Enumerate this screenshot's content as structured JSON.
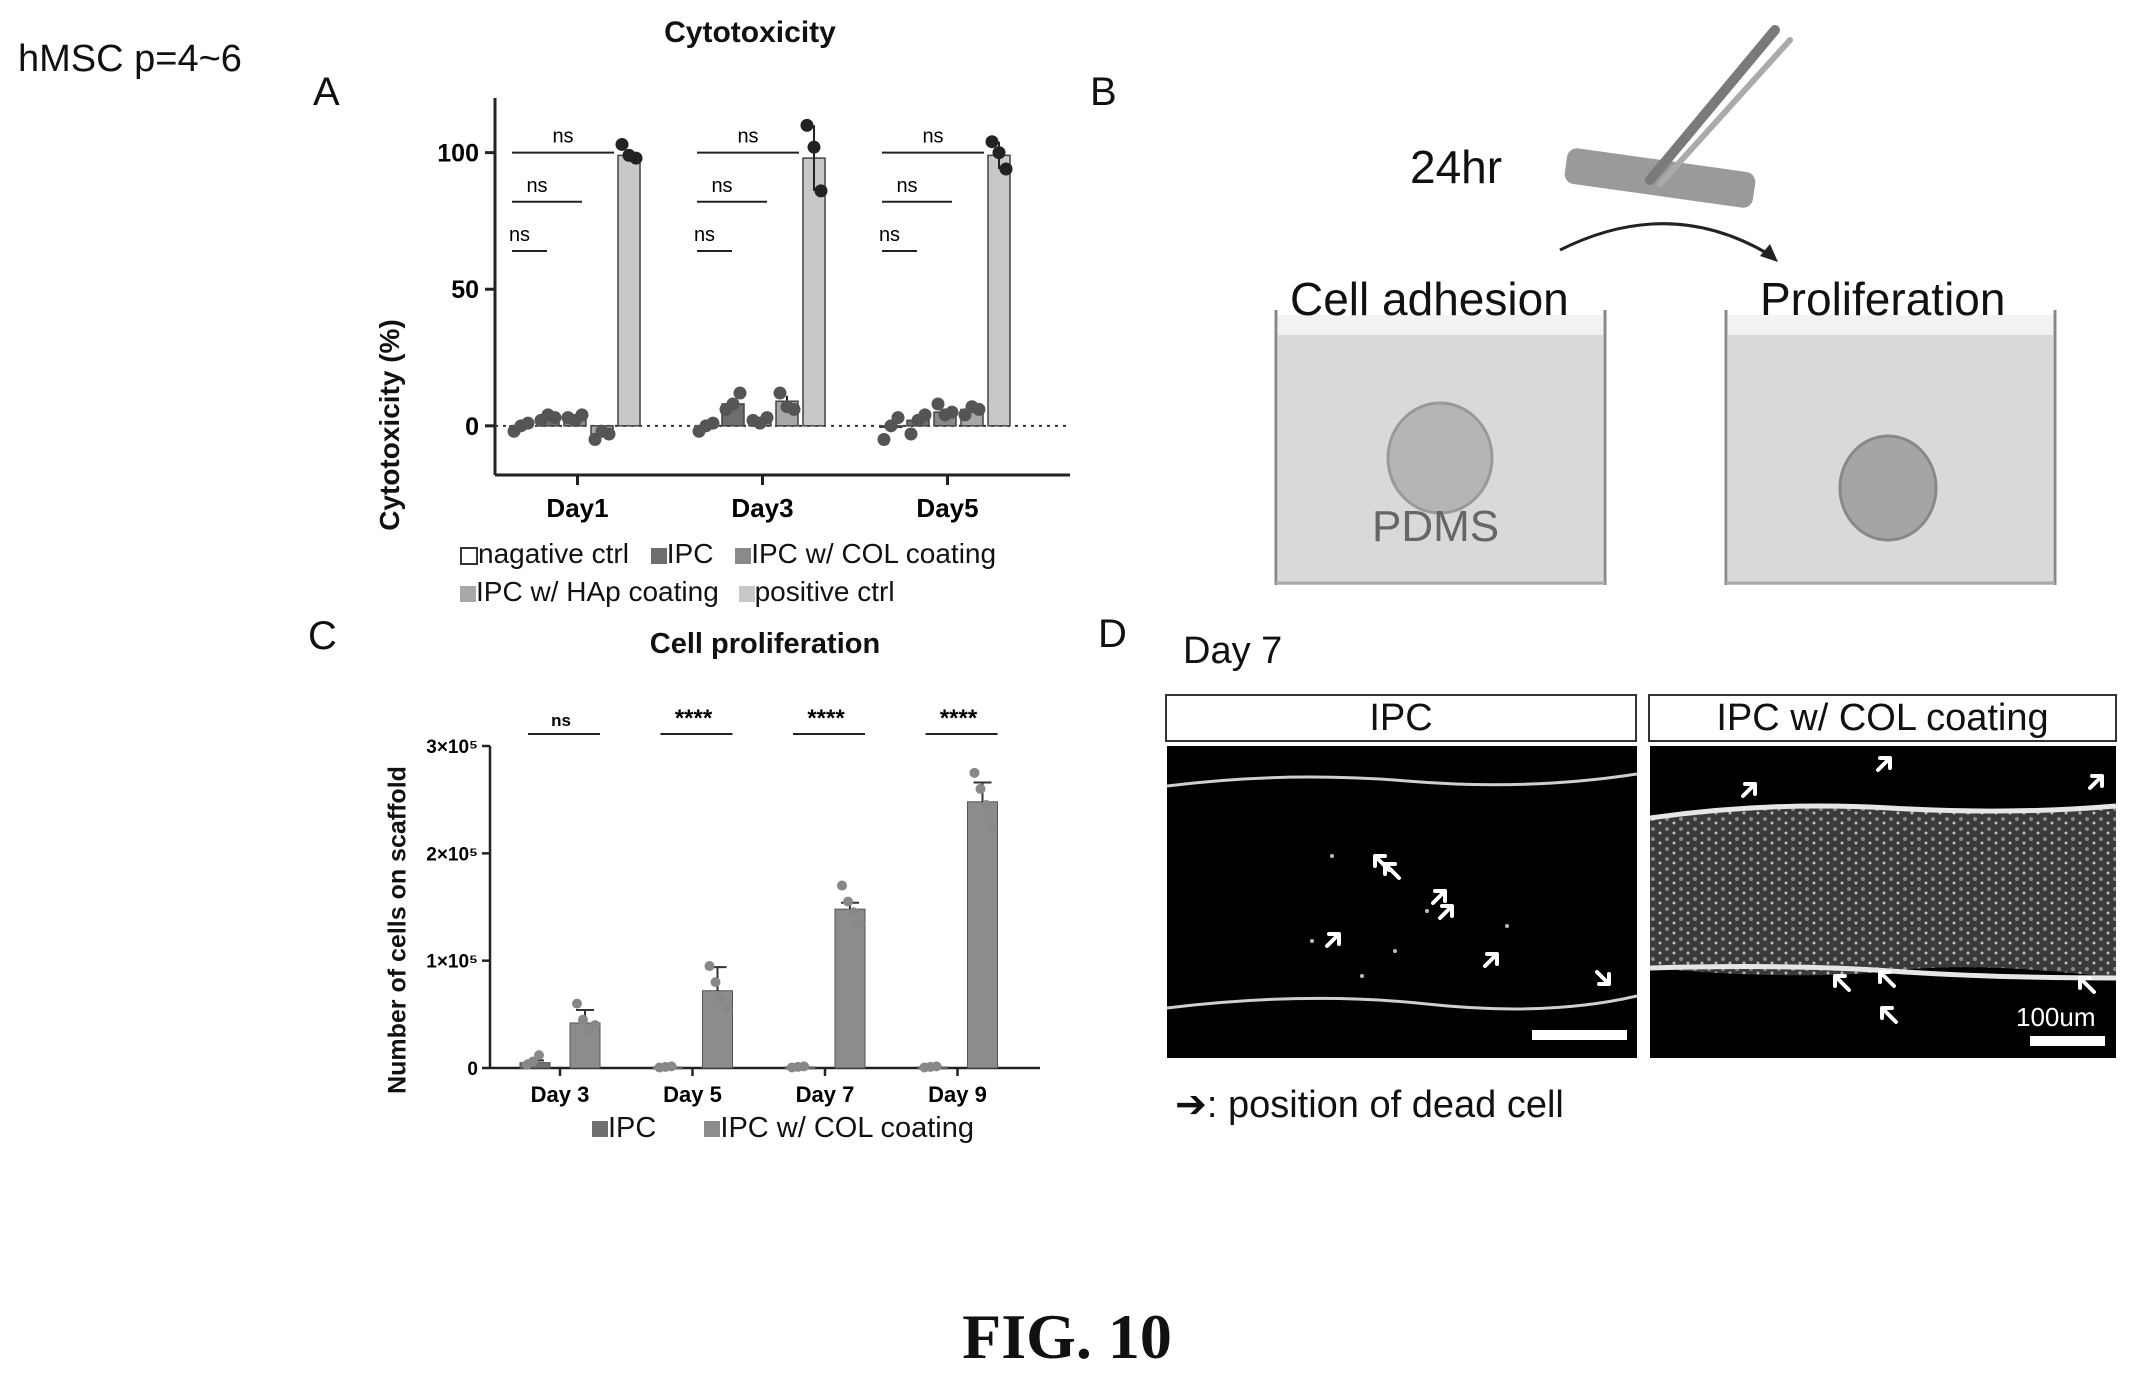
{
  "top_label": "hMSC p=4~6",
  "figure_caption": "FIG. 10",
  "panels": {
    "A": "A",
    "B": "B",
    "C": "C",
    "D": "D"
  },
  "panel_b": {
    "time_label": "24hr",
    "left_well_label": "Cell adhesion",
    "right_well_label": "Proliferation",
    "material_label": "PDMS"
  },
  "panel_d": {
    "day_label": "Day 7",
    "left_label": "IPC",
    "right_label": "IPC w/ COL coating",
    "scale_label": "100um",
    "note": "➔: position of dead cell"
  },
  "chart_data": [
    {
      "type": "bar",
      "title": "Cytotoxicity",
      "ylabel": "Cytotoxicity (%)",
      "xlabel": "",
      "categories": [
        "Day1",
        "Day3",
        "Day5"
      ],
      "ylim": [
        -18,
        120
      ],
      "yticks": [
        0,
        50,
        100
      ],
      "ytick_labels": [
        "0",
        "50",
        "100"
      ],
      "zero_line": "dotted",
      "grid": false,
      "legend_position": "bottom",
      "series": [
        {
          "name": "nagative ctrl",
          "color": "#ffffff",
          "values": [
            0,
            0,
            0
          ],
          "points": [
            [
              -2,
              0,
              1
            ],
            [
              -2,
              0,
              1
            ],
            [
              -5,
              0,
              3
            ]
          ]
        },
        {
          "name": "IPC",
          "color": "#6e6e6e",
          "values": [
            3,
            8,
            2
          ],
          "points": [
            [
              2,
              4,
              3
            ],
            [
              6,
              8,
              12
            ],
            [
              -3,
              2,
              4
            ]
          ]
        },
        {
          "name": "IPC w/ COL coating",
          "color": "#8a8a8a",
          "values": [
            2,
            2,
            5
          ],
          "points": [
            [
              3,
              2,
              4
            ],
            [
              2,
              1,
              3
            ],
            [
              8,
              4,
              5
            ]
          ]
        },
        {
          "name": "IPC w/ HAp coating",
          "color": "#a8a8a8",
          "values": [
            -3,
            9,
            6
          ],
          "points": [
            [
              -5,
              -2,
              -3
            ],
            [
              12,
              7,
              6
            ],
            [
              4,
              7,
              6
            ]
          ]
        },
        {
          "name": "positive ctrl",
          "color": "#c8c8c8",
          "values": [
            99,
            98,
            99
          ],
          "points": [
            [
              103,
              99,
              98
            ],
            [
              110,
              102,
              86
            ],
            [
              104,
              100,
              94
            ]
          ]
        }
      ],
      "error": [
        [
          1,
          1,
          1
        ],
        [
          1,
          2,
          1
        ],
        [
          1,
          1,
          1
        ],
        [
          1,
          2,
          1
        ],
        [
          2,
          12,
          5
        ]
      ],
      "significance": [
        {
          "group": "Day1",
          "labels": [
            "ns",
            "ns",
            "ns"
          ]
        },
        {
          "group": "Day3",
          "labels": [
            "ns",
            "ns",
            "ns"
          ]
        },
        {
          "group": "Day5",
          "labels": [
            "ns",
            "ns",
            "ns"
          ]
        }
      ]
    },
    {
      "type": "bar",
      "title": "Cell proliferation",
      "ylabel": "Number of cells on scaffold",
      "xlabel": "",
      "categories": [
        "Day 3",
        "Day 5",
        "Day 7",
        "Day 9"
      ],
      "ylim": [
        0,
        300000
      ],
      "yticks": [
        0,
        100000,
        200000,
        300000
      ],
      "ytick_labels": [
        "0",
        "1×10⁵",
        "2×10⁵",
        "3×10⁵"
      ],
      "grid": false,
      "legend_position": "bottom",
      "series": [
        {
          "name": "IPC",
          "color": "#707070",
          "values": [
            5000,
            1000,
            1000,
            1000
          ],
          "points": [
            [
              3000,
              6000,
              12000
            ],
            [
              500,
              1000,
              1500
            ],
            [
              500,
              1000,
              1500
            ],
            [
              500,
              1000,
              1500
            ]
          ]
        },
        {
          "name": "IPC w/ COL coating",
          "color": "#8c8c8c",
          "values": [
            42000,
            72000,
            148000,
            248000
          ],
          "points": [
            [
              60000,
              45000,
              35000,
              40000
            ],
            [
              95000,
              80000,
              65000,
              55000
            ],
            [
              170000,
              155000,
              145000,
              135000
            ],
            [
              275000,
              260000,
              245000,
              225000
            ]
          ]
        }
      ],
      "error": [
        [
          2000,
          500,
          500,
          500
        ],
        [
          12000,
          22000,
          6000,
          18000
        ]
      ],
      "significance": [
        "ns",
        "****",
        "****",
        "****"
      ]
    }
  ]
}
